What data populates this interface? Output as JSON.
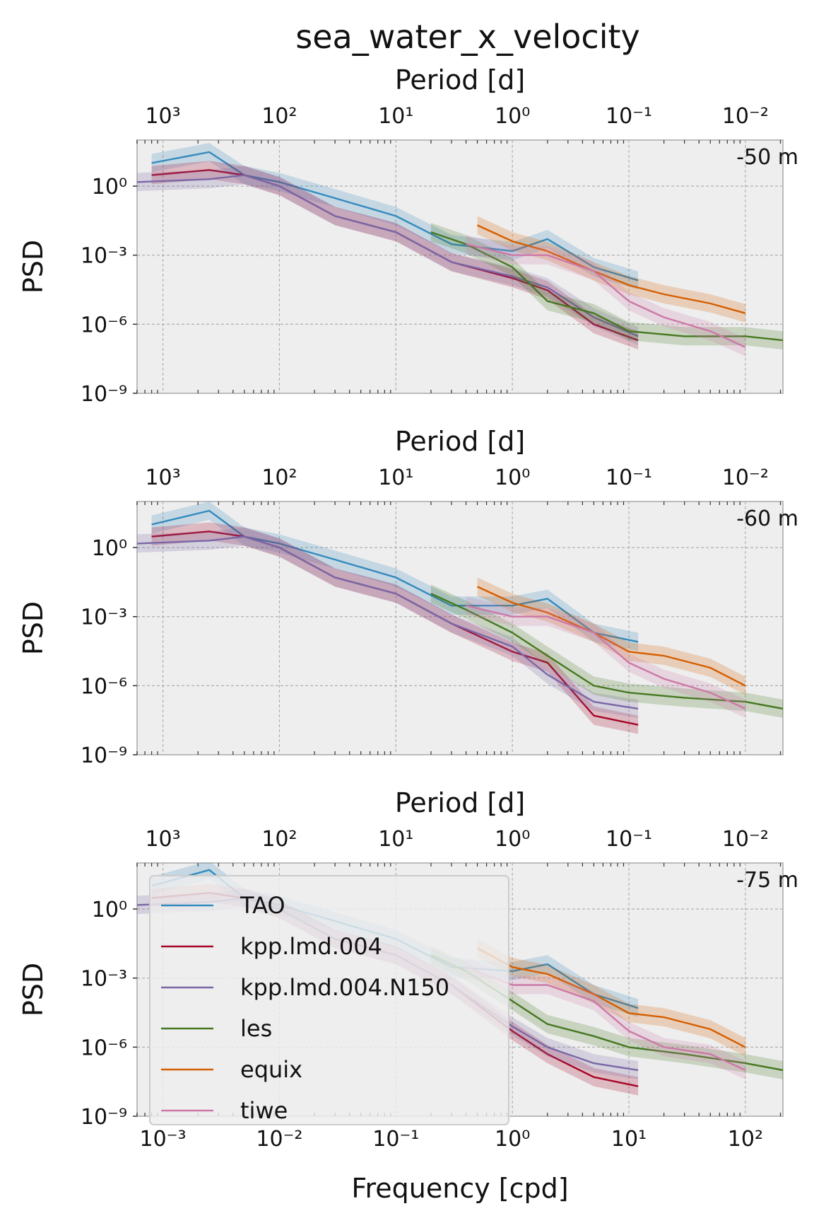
{
  "figure": {
    "title": "sea_water_x_velocity",
    "xlabel": "Frequency [cpd]",
    "ylabel": "PSD",
    "secondary_xlabel": "Period [d]"
  },
  "colors": {
    "TAO": "#348abd",
    "kpp.lmd.004": "#a60628",
    "kpp.lmd.004.N150": "#7a68a6",
    "les": "#467821",
    "equix": "#d55e00",
    "tiwe": "#cc79a7",
    "axes_bg": "#eeeeee",
    "grid": "#b0b0b0"
  },
  "legend": {
    "placement": "inside-left of bottom panel",
    "entries": [
      "TAO",
      "kpp.lmd.004",
      "kpp.lmd.004.N150",
      "les",
      "equix",
      "tiwe"
    ]
  },
  "chart_data": [
    {
      "type": "line",
      "panel_label": "-50 m",
      "xscale": "log",
      "yscale": "log",
      "xlim": [
        0.0006,
        210
      ],
      "ylim": [
        1e-09,
        100
      ],
      "grid": true,
      "xlabel": "",
      "ylabel": "PSD",
      "x_tick_labels": [
        "10⁻³",
        "10⁻²",
        "10⁻¹",
        "10⁰",
        "10¹",
        "10²"
      ],
      "y_tick_labels": [
        "10⁻⁹",
        "10⁻⁶",
        "10⁻³",
        "10⁰"
      ],
      "top_axis": {
        "label": "Period [d]",
        "tick_labels": [
          "10³",
          "10²",
          "10¹",
          "10⁰",
          "10⁻¹",
          "10⁻²"
        ]
      },
      "series": [
        {
          "name": "TAO",
          "x": [
            0.0008,
            0.0025,
            0.005,
            0.01,
            0.03,
            0.1,
            0.3,
            1.0,
            2.0,
            5.0,
            12
          ],
          "y": [
            10,
            30,
            3,
            1.5,
            0.3,
            0.05,
            0.003,
            0.0015,
            0.005,
            0.0003,
            8e-05
          ]
        },
        {
          "name": "kpp.lmd.004",
          "x": [
            0.0008,
            0.0025,
            0.005,
            0.01,
            0.03,
            0.1,
            0.3,
            1.0,
            2.0,
            5.0,
            12
          ],
          "y": [
            3,
            5,
            3,
            1,
            0.05,
            0.01,
            0.0005,
            0.0001,
            3e-05,
            1e-06,
            2e-07
          ]
        },
        {
          "name": "kpp.lmd.004.N150",
          "x": [
            0.0006,
            0.0025,
            0.005,
            0.01,
            0.03,
            0.1,
            0.3,
            1.0,
            2.0,
            5.0,
            12
          ],
          "y": [
            1.5,
            2,
            3,
            1,
            0.05,
            0.01,
            0.0005,
            0.00012,
            4e-05,
            2e-06,
            3e-07
          ]
        },
        {
          "name": "les",
          "x": [
            0.2,
            0.4,
            1.0,
            2.0,
            5.0,
            10,
            30,
            100,
            210
          ],
          "y": [
            0.01,
            0.003,
            0.0003,
            1e-05,
            3e-06,
            5e-07,
            3e-07,
            3e-07,
            2e-07
          ]
        },
        {
          "name": "equix",
          "x": [
            0.5,
            1.0,
            2.0,
            5.0,
            10,
            20,
            50,
            100
          ],
          "y": [
            0.02,
            0.004,
            0.0015,
            0.0002,
            5e-05,
            2e-05,
            8e-06,
            3e-06
          ]
        },
        {
          "name": "tiwe",
          "x": [
            0.4,
            1.0,
            2.0,
            5.0,
            10,
            20,
            50,
            100
          ],
          "y": [
            0.003,
            0.001,
            0.001,
            0.0002,
            1e-05,
            2e-06,
            5e-07,
            1e-07
          ]
        }
      ]
    },
    {
      "type": "line",
      "panel_label": "-60 m",
      "xscale": "log",
      "yscale": "log",
      "xlim": [
        0.0006,
        210
      ],
      "ylim": [
        1e-09,
        100
      ],
      "grid": true,
      "xlabel": "",
      "ylabel": "PSD",
      "x_tick_labels": [
        "10⁻³",
        "10⁻²",
        "10⁻¹",
        "10⁰",
        "10¹",
        "10²"
      ],
      "y_tick_labels": [
        "10⁻⁹",
        "10⁻⁶",
        "10⁻³",
        "10⁰"
      ],
      "top_axis": {
        "label": "Period [d]",
        "tick_labels": [
          "10³",
          "10²",
          "10¹",
          "10⁰",
          "10⁻¹",
          "10⁻²"
        ]
      },
      "series": [
        {
          "name": "TAO",
          "x": [
            0.0008,
            0.0025,
            0.005,
            0.01,
            0.03,
            0.1,
            0.3,
            1.0,
            2.0,
            5.0,
            12
          ],
          "y": [
            10,
            40,
            3,
            1.5,
            0.3,
            0.05,
            0.003,
            0.003,
            0.006,
            0.0002,
            8e-05
          ]
        },
        {
          "name": "kpp.lmd.004",
          "x": [
            0.0008,
            0.0025,
            0.005,
            0.01,
            0.03,
            0.1,
            0.3,
            1.0,
            2.0,
            5.0,
            12
          ],
          "y": [
            3,
            5,
            3,
            1,
            0.05,
            0.01,
            0.0005,
            3e-05,
            1e-05,
            5e-08,
            2e-08
          ]
        },
        {
          "name": "kpp.lmd.004.N150",
          "x": [
            0.0006,
            0.0025,
            0.005,
            0.01,
            0.03,
            0.1,
            0.3,
            1.0,
            2.0,
            5.0,
            12
          ],
          "y": [
            1.5,
            2,
            3,
            1,
            0.05,
            0.01,
            0.0005,
            5e-05,
            3e-06,
            2e-07,
            1e-07
          ]
        },
        {
          "name": "les",
          "x": [
            0.2,
            0.4,
            1.0,
            2.0,
            5.0,
            10,
            30,
            100,
            210
          ],
          "y": [
            0.01,
            0.002,
            0.0002,
            2e-05,
            1e-06,
            5e-07,
            3e-07,
            2e-07,
            1e-07
          ]
        },
        {
          "name": "equix",
          "x": [
            0.5,
            1.0,
            2.0,
            5.0,
            10,
            20,
            50,
            100
          ],
          "y": [
            0.02,
            0.004,
            0.0015,
            0.0002,
            3e-05,
            2e-05,
            6e-06,
            1e-06
          ]
        },
        {
          "name": "tiwe",
          "x": [
            0.4,
            1.0,
            2.0,
            5.0,
            10,
            20,
            50,
            100
          ],
          "y": [
            0.003,
            0.001,
            0.001,
            0.0002,
            1e-05,
            2e-06,
            5e-07,
            1e-07
          ]
        }
      ]
    },
    {
      "type": "line",
      "panel_label": "-75 m",
      "xscale": "log",
      "yscale": "log",
      "xlim": [
        0.0006,
        210
      ],
      "ylim": [
        1e-09,
        100
      ],
      "grid": true,
      "xlabel": "Frequency [cpd]",
      "ylabel": "PSD",
      "x_tick_labels": [
        "10⁻³",
        "10⁻²",
        "10⁻¹",
        "10⁰",
        "10¹",
        "10²"
      ],
      "y_tick_labels": [
        "10⁻⁹",
        "10⁻⁶",
        "10⁻³",
        "10⁰"
      ],
      "top_axis": {
        "label": "Period [d]",
        "tick_labels": [
          "10³",
          "10²",
          "10¹",
          "10⁰",
          "10⁻¹",
          "10⁻²"
        ]
      },
      "series": [
        {
          "name": "TAO",
          "x": [
            0.0008,
            0.0025,
            0.005,
            0.01,
            0.03,
            0.1,
            0.3,
            1.0,
            2.0,
            5.0,
            12
          ],
          "y": [
            10,
            50,
            3,
            1.5,
            0.3,
            0.05,
            0.003,
            0.002,
            0.004,
            0.0002,
            5e-05
          ]
        },
        {
          "name": "kpp.lmd.004",
          "x": [
            0.0008,
            0.0025,
            0.005,
            0.01,
            0.03,
            0.1,
            0.3,
            1.0,
            2.0,
            5.0,
            12
          ],
          "y": [
            3,
            5,
            3,
            1,
            0.05,
            0.01,
            0.0005,
            5e-06,
            5e-07,
            5e-08,
            2e-08
          ]
        },
        {
          "name": "kpp.lmd.004.N150",
          "x": [
            0.0006,
            0.0025,
            0.005,
            0.01,
            0.03,
            0.1,
            0.3,
            1.0,
            2.0,
            5.0,
            12
          ],
          "y": [
            1.5,
            2,
            3,
            1,
            0.05,
            0.01,
            0.0005,
            8e-06,
            1e-06,
            2e-07,
            1e-07
          ]
        },
        {
          "name": "les",
          "x": [
            0.2,
            0.4,
            1.0,
            2.0,
            5.0,
            10,
            30,
            100,
            210
          ],
          "y": [
            0.01,
            0.002,
            0.0001,
            1e-05,
            3e-06,
            1e-06,
            5e-07,
            2e-07,
            1e-07
          ]
        },
        {
          "name": "equix",
          "x": [
            0.5,
            1.0,
            2.0,
            5.0,
            10,
            20,
            50,
            100
          ],
          "y": [
            0.02,
            0.003,
            0.0015,
            0.0002,
            3e-05,
            2e-05,
            6e-06,
            1e-06
          ]
        },
        {
          "name": "tiwe",
          "x": [
            0.4,
            1.0,
            2.0,
            5.0,
            10,
            20,
            50,
            100
          ],
          "y": [
            0.003,
            0.0005,
            0.0005,
            0.0001,
            5e-06,
            1e-06,
            5e-07,
            1e-07
          ]
        }
      ]
    }
  ]
}
